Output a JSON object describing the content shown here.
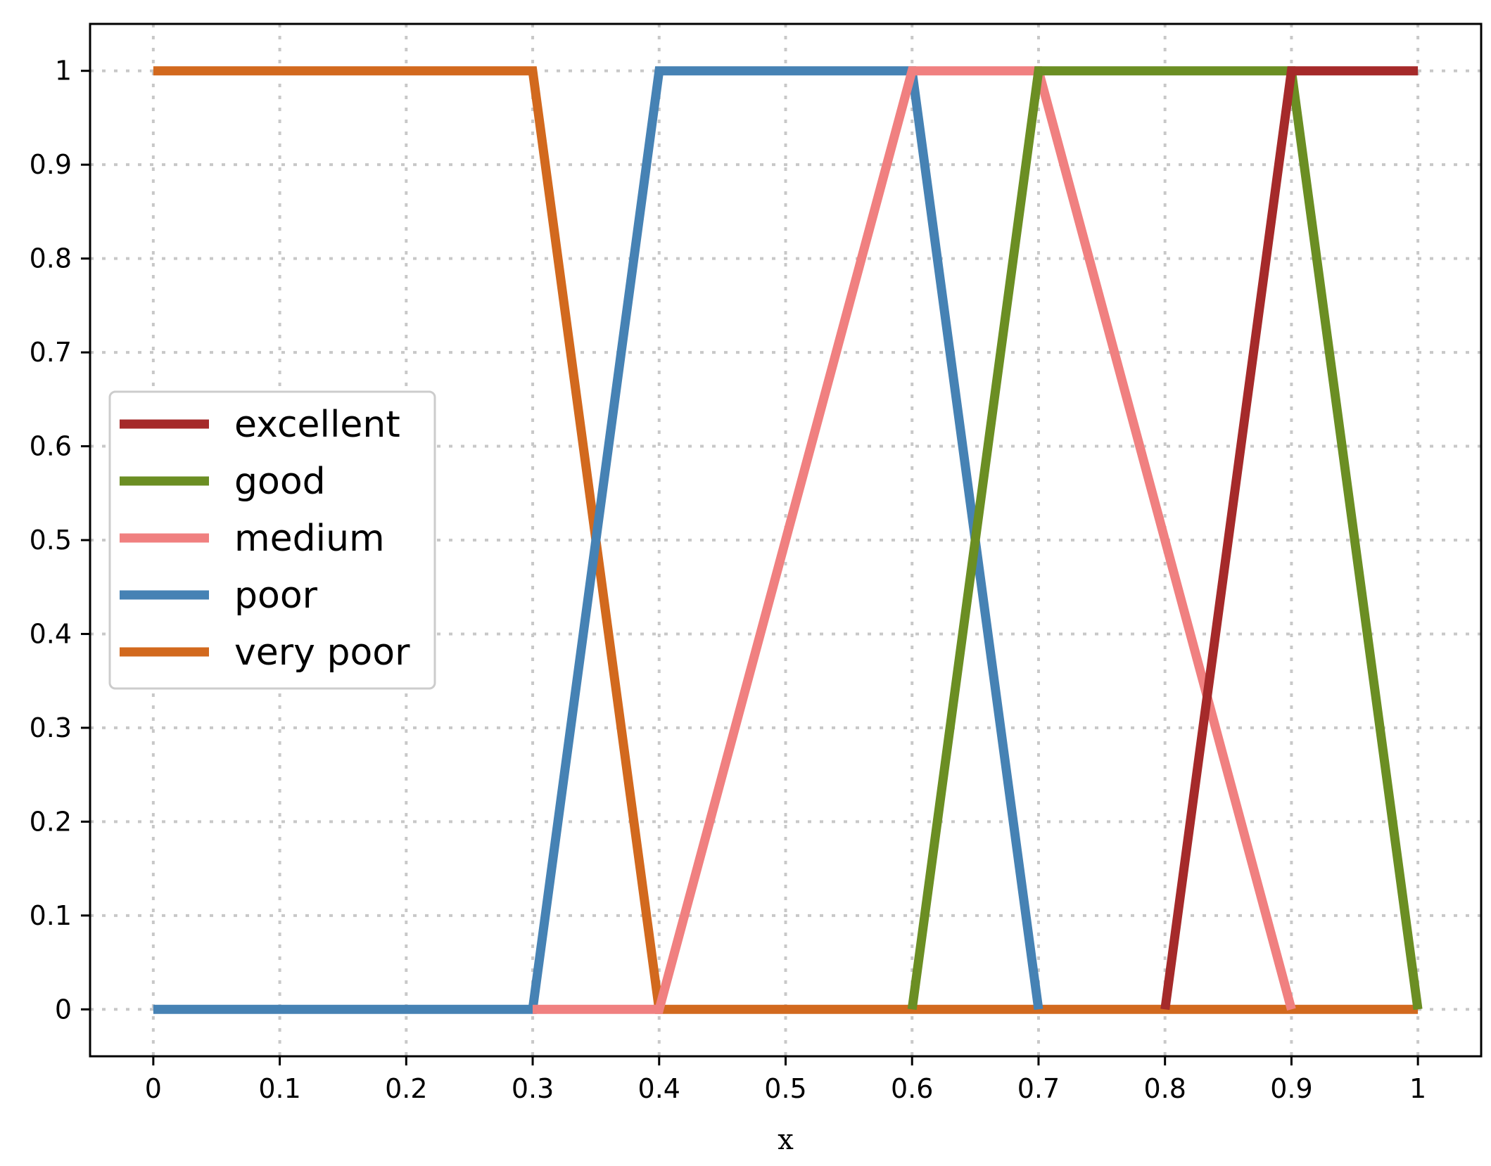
{
  "chart_data": {
    "type": "line",
    "title": "",
    "xlabel": "x",
    "ylabel": "",
    "xlim": [
      -0.05,
      1.05
    ],
    "ylim": [
      -0.05,
      1.05
    ],
    "x_ticks": [
      "0",
      "0.1",
      "0.2",
      "0.3",
      "0.4",
      "0.5",
      "0.6",
      "0.7",
      "0.8",
      "0.9",
      "1"
    ],
    "y_ticks": [
      "0",
      "0.1",
      "0.2",
      "0.3",
      "0.4",
      "0.5",
      "0.6",
      "0.7",
      "0.8",
      "0.9",
      "1"
    ],
    "grid": true,
    "legend_position": "center-left",
    "series": [
      {
        "name": "very poor",
        "color": "#d2691e",
        "x": [
          0,
          0.3,
          0.4,
          1.0
        ],
        "y": [
          1,
          1,
          0,
          0
        ]
      },
      {
        "name": "poor",
        "color": "#4682b4",
        "x": [
          0,
          0.3,
          0.4,
          0.6,
          0.7
        ],
        "y": [
          0,
          0,
          1,
          1,
          0
        ]
      },
      {
        "name": "medium",
        "color": "#f08080",
        "x": [
          0.3,
          0.4,
          0.6,
          0.7,
          0.9
        ],
        "y": [
          0,
          0,
          1,
          1,
          0
        ]
      },
      {
        "name": "good",
        "color": "#6b8e23",
        "x": [
          0.6,
          0.7,
          0.9,
          1.0
        ],
        "y": [
          0,
          1,
          1,
          0
        ]
      },
      {
        "name": "excellent",
        "color": "#a52a2a",
        "x": [
          0.8,
          0.9,
          1.0
        ],
        "y": [
          0,
          1,
          1
        ]
      }
    ],
    "legend_order": [
      "excellent",
      "good",
      "medium",
      "poor",
      "very poor"
    ]
  }
}
